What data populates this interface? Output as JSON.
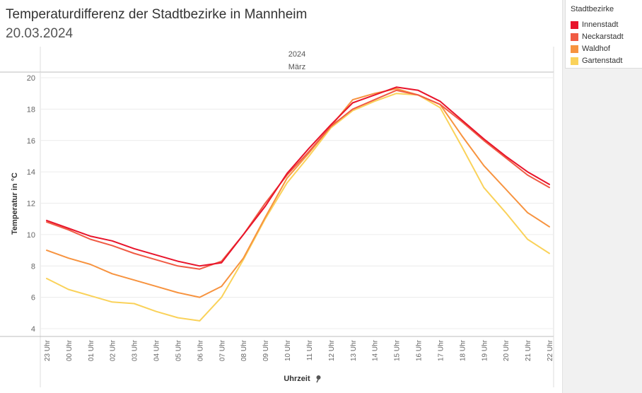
{
  "title": "Temperaturdifferenz der Stadtbezirke in Mannheim",
  "subtitle": "20.03.2024",
  "chart_data": {
    "type": "line",
    "header_year": "2024",
    "header_month": "März",
    "ylabel": "Temperatur in °C",
    "xlabel": "Uhrzeit",
    "ylim": [
      4,
      20
    ],
    "yticks": [
      4,
      6,
      8,
      10,
      12,
      14,
      16,
      18,
      20
    ],
    "grid": true,
    "legend_title": "Stadtbezirke",
    "legend_position": "top-right",
    "categories": [
      "23 Uhr",
      "00 Uhr",
      "01 Uhr",
      "02 Uhr",
      "03 Uhr",
      "04 Uhr",
      "05 Uhr",
      "06 Uhr",
      "07 Uhr",
      "08 Uhr",
      "09 Uhr",
      "10 Uhr",
      "11 Uhr",
      "12 Uhr",
      "13 Uhr",
      "14 Uhr",
      "15 Uhr",
      "16 Uhr",
      "17 Uhr",
      "18 Uhr",
      "19 Uhr",
      "20 Uhr",
      "21 Uhr",
      "22 Uhr"
    ],
    "series": [
      {
        "name": "Innenstadt",
        "color": "#e8142b",
        "values": [
          10.9,
          10.4,
          9.9,
          9.6,
          9.1,
          8.7,
          8.3,
          8.0,
          8.2,
          10.0,
          11.8,
          13.9,
          15.5,
          17.0,
          18.4,
          18.9,
          19.4,
          19.2,
          18.5,
          17.3,
          16.1,
          15.0,
          14.0,
          13.2
        ]
      },
      {
        "name": "Neckarstadt",
        "color": "#f05b44",
        "values": [
          10.8,
          10.3,
          9.7,
          9.3,
          8.8,
          8.4,
          8.0,
          7.8,
          8.3,
          10.0,
          12.0,
          13.8,
          15.3,
          16.9,
          18.0,
          18.6,
          19.2,
          18.9,
          18.3,
          17.2,
          16.0,
          14.9,
          13.8,
          13.0
        ]
      },
      {
        "name": "Waldhof",
        "color": "#f7933f",
        "values": [
          9.0,
          8.5,
          8.1,
          7.5,
          7.1,
          6.7,
          6.3,
          6.0,
          6.7,
          8.5,
          11.1,
          13.6,
          15.2,
          16.9,
          18.6,
          19.0,
          19.3,
          18.9,
          18.3,
          16.3,
          14.4,
          12.9,
          11.4,
          10.5
        ]
      },
      {
        "name": "Gartenstadt",
        "color": "#fad25a",
        "values": [
          7.2,
          6.5,
          6.1,
          5.7,
          5.6,
          5.1,
          4.7,
          4.5,
          6.0,
          8.4,
          11.0,
          13.3,
          15.0,
          16.8,
          17.9,
          18.5,
          19.0,
          18.9,
          18.1,
          15.6,
          13.0,
          11.4,
          9.7,
          8.8
        ]
      }
    ]
  }
}
